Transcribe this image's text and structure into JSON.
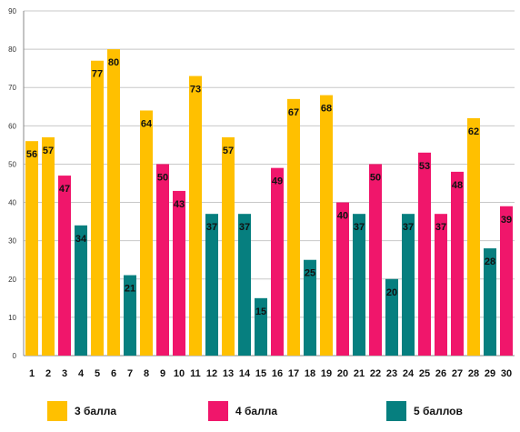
{
  "chart_data": {
    "type": "bar",
    "categories": [
      "1",
      "2",
      "3",
      "4",
      "5",
      "6",
      "7",
      "8",
      "9",
      "10",
      "11",
      "12",
      "13",
      "14",
      "15",
      "16",
      "17",
      "18",
      "19",
      "20",
      "21",
      "22",
      "23",
      "24",
      "25",
      "26",
      "27",
      "28",
      "29",
      "30"
    ],
    "values": [
      56,
      57,
      47,
      34,
      77,
      80,
      21,
      64,
      50,
      43,
      73,
      37,
      57,
      37,
      15,
      49,
      67,
      25,
      68,
      40,
      37,
      50,
      20,
      37,
      53,
      37,
      48,
      62,
      28,
      39
    ],
    "groups": [
      "3 балла",
      "3 балла",
      "4 балла",
      "5 баллов",
      "3 балла",
      "3 балла",
      "5 баллов",
      "3 балла",
      "4 балла",
      "4 балла",
      "3 балла",
      "5 баллов",
      "3 балла",
      "5 баллов",
      "5 баллов",
      "4 балла",
      "3 балла",
      "5 баллов",
      "3 балла",
      "4 балла",
      "5 баллов",
      "4 балла",
      "5 баллов",
      "5 баллов",
      "4 балла",
      "4 балла",
      "4 балла",
      "3 балла",
      "5 баллов",
      "4 балла"
    ],
    "yticks": [
      "0",
      "10",
      "20",
      "30",
      "40",
      "50",
      "60",
      "70",
      "80",
      "90"
    ],
    "ylim": [
      0,
      90
    ],
    "grid": true,
    "legend_position": "bottom",
    "series": [
      {
        "name": "3 балла",
        "color": "#FFC000"
      },
      {
        "name": "4 балла",
        "color": "#F0166B"
      },
      {
        "name": "5 баллов",
        "color": "#067F7F"
      }
    ]
  }
}
